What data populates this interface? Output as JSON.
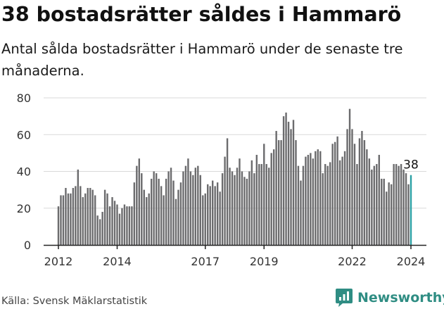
{
  "header": {
    "title": "38 bostadsrätter såldes i Hammarö",
    "subtitle": "Antal sålda bostadsrätter i Hammarö under de senaste tre månaderna."
  },
  "footer": {
    "source": "Källa: Svensk Mäklarstatistik",
    "brand": "Newsworthy"
  },
  "colors": {
    "bar": "#6b6b6d",
    "highlight": "#2aa0a4",
    "grid": "#d9d9d9",
    "brand": "#2f8d83"
  },
  "chart_data": {
    "type": "bar",
    "title": "38 bostadsrätter såldes i Hammarö",
    "subtitle": "Antal sålda bostadsrätter i Hammarö under de senaste tre månaderna.",
    "xlabel": "",
    "ylabel": "",
    "ylim": [
      0,
      80
    ],
    "yticks": [
      0,
      20,
      40,
      60,
      80
    ],
    "grid": true,
    "x_start": "2012-01",
    "frequency": "monthly",
    "x_tick_labels": [
      {
        "label": "2012",
        "index": 0
      },
      {
        "label": "2014",
        "index": 24
      },
      {
        "label": "2017",
        "index": 60
      },
      {
        "label": "2019",
        "index": 84
      },
      {
        "label": "2022",
        "index": 120
      },
      {
        "label": "2024",
        "index": 144
      }
    ],
    "highlight_label": "38",
    "series": [
      {
        "name": "Sålda bostadsrätter",
        "values": [
          21,
          27,
          27,
          31,
          28,
          28,
          31,
          32,
          41,
          32,
          26,
          28,
          31,
          31,
          30,
          27,
          16,
          14,
          18,
          30,
          28,
          21,
          26,
          24,
          22,
          17,
          20,
          22,
          21,
          21,
          21,
          34,
          43,
          47,
          39,
          30,
          26,
          28,
          36,
          40,
          39,
          36,
          32,
          27,
          36,
          40,
          42,
          35,
          25,
          30,
          34,
          40,
          43,
          47,
          40,
          38,
          42,
          43,
          38,
          27,
          28,
          33,
          32,
          35,
          32,
          34,
          29,
          39,
          48,
          58,
          42,
          40,
          38,
          42,
          47,
          40,
          37,
          36,
          40,
          46,
          39,
          49,
          44,
          44,
          55,
          44,
          42,
          50,
          52,
          62,
          57,
          57,
          70,
          72,
          67,
          63,
          68,
          57,
          43,
          35,
          43,
          48,
          49,
          50,
          47,
          51,
          52,
          51,
          39,
          44,
          43,
          45,
          55,
          56,
          59,
          46,
          48,
          51,
          63,
          74,
          63,
          55,
          44,
          58,
          62,
          57,
          52,
          47,
          41,
          43,
          44,
          49,
          36,
          36,
          29,
          34,
          33,
          44,
          44,
          43,
          44,
          41,
          39,
          33,
          38
        ]
      }
    ]
  }
}
